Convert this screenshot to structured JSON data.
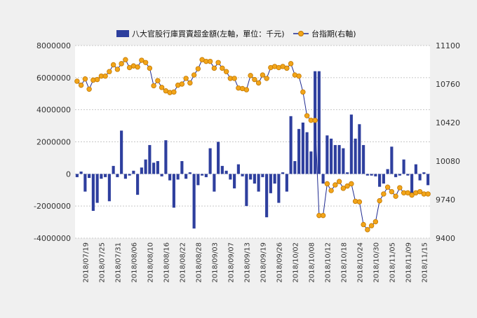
{
  "chart_data": {
    "type": "bar+line",
    "legend": {
      "bar_label": "八大官股行庫買賣超金額(左軸，單位：千元)",
      "line_label": "台指期(右軸)",
      "placement": "top"
    },
    "colors": {
      "bar": "#2e3f9e",
      "line": "#1f2a90",
      "marker": "#f2a51a",
      "marker_edge": "#c27800",
      "grid": "#c8c8c8",
      "plot_bg": "#ffffff",
      "page_bg": "#f0f0f0"
    },
    "left_axis": {
      "min": -4000000,
      "max": 8000000,
      "ticks": [
        -4000000,
        -2000000,
        0,
        2000000,
        4000000,
        6000000,
        8000000
      ],
      "tick_labels": [
        "-4000000",
        "-2000000",
        "0",
        "2000000",
        "4000000",
        "6000000",
        "8000000"
      ]
    },
    "right_axis": {
      "min": 9400,
      "max": 11100,
      "ticks": [
        9400,
        9740,
        10080,
        10420,
        10760,
        11100
      ],
      "tick_labels": [
        "9400",
        "9740",
        "10080",
        "10420",
        "10760",
        "11100"
      ]
    },
    "grid": true,
    "x_tick_labels": [
      {
        "index": 2,
        "label": "2018/07/19"
      },
      {
        "index": 6,
        "label": "2018/07/25"
      },
      {
        "index": 10,
        "label": "2018/07/31"
      },
      {
        "index": 14,
        "label": "2018/08/06"
      },
      {
        "index": 18,
        "label": "2018/08/10"
      },
      {
        "index": 22,
        "label": "2018/08/16"
      },
      {
        "index": 26,
        "label": "2018/08/22"
      },
      {
        "index": 30,
        "label": "2018/08/28"
      },
      {
        "index": 34,
        "label": "2018/09/03"
      },
      {
        "index": 38,
        "label": "2018/09/07"
      },
      {
        "index": 42,
        "label": "2018/09/13"
      },
      {
        "index": 46,
        "label": "2018/09/19"
      },
      {
        "index": 50,
        "label": "2018/09/26"
      },
      {
        "index": 54,
        "label": "2018/10/02"
      },
      {
        "index": 58,
        "label": "2018/10/08"
      },
      {
        "index": 62,
        "label": "2018/10/12"
      },
      {
        "index": 66,
        "label": "2018/10/18"
      },
      {
        "index": 70,
        "label": "2018/10/24"
      },
      {
        "index": 74,
        "label": "2018/10/30"
      },
      {
        "index": 78,
        "label": "2018/11/05"
      },
      {
        "index": 82,
        "label": "2018/11/09"
      },
      {
        "index": 86,
        "label": "2018/11/15"
      }
    ],
    "series": [
      {
        "name": "八大官股行庫買賣超金額(左軸，單位：千元)",
        "axis": "left",
        "kind": "bar",
        "values": [
          -200000,
          150000,
          -1100000,
          -250000,
          -2300000,
          -1800000,
          -300000,
          -200000,
          -1700000,
          500000,
          -200000,
          2700000,
          -300000,
          -100000,
          200000,
          -1300000,
          400000,
          900000,
          1800000,
          700000,
          800000,
          -150000,
          2100000,
          -400000,
          -2100000,
          -350000,
          800000,
          -300000,
          100000,
          -3400000,
          -700000,
          -100000,
          -200000,
          1600000,
          -1100000,
          2000000,
          500000,
          200000,
          -350000,
          -900000,
          600000,
          -150000,
          -2000000,
          -350000,
          -600000,
          -1100000,
          -200000,
          -2700000,
          -1200000,
          -600000,
          -1800000,
          100000,
          -1100000,
          3600000,
          800000,
          2800000,
          3200000,
          2600000,
          1400000,
          6400000,
          6400000,
          -600000,
          2400000,
          2200000,
          1800000,
          1800000,
          1600000,
          100000,
          3700000,
          2200000,
          3100000,
          1800000,
          -100000,
          -100000,
          -150000,
          -800000,
          -600000,
          300000,
          1700000,
          -200000,
          -100000,
          900000,
          -100000,
          -1200000,
          600000,
          -400000,
          100000,
          -700000
        ],
        "color": "#2e3f9e"
      },
      {
        "name": "台指期(右軸)",
        "axis": "right",
        "kind": "line",
        "values": [
          10785,
          10750,
          10805,
          10715,
          10795,
          10800,
          10830,
          10830,
          10870,
          10930,
          10890,
          10940,
          10975,
          10905,
          10920,
          10910,
          10970,
          10950,
          10900,
          10745,
          10790,
          10730,
          10700,
          10685,
          10690,
          10750,
          10760,
          10810,
          10770,
          10840,
          10895,
          10975,
          10960,
          10960,
          10900,
          10950,
          10900,
          10870,
          10810,
          10810,
          10725,
          10720,
          10710,
          10835,
          10800,
          10770,
          10840,
          10810,
          10905,
          10915,
          10905,
          10915,
          10900,
          10940,
          10840,
          10830,
          10690,
          10480,
          10440,
          10440,
          9600,
          9600,
          9880,
          9820,
          9870,
          9900,
          9840,
          9860,
          9880,
          9725,
          9720,
          9520,
          9475,
          9510,
          9545,
          9730,
          9790,
          9850,
          9810,
          9770,
          9845,
          9800,
          9800,
          9780,
          9800,
          9810,
          9790,
          9790
        ]
      }
    ]
  }
}
